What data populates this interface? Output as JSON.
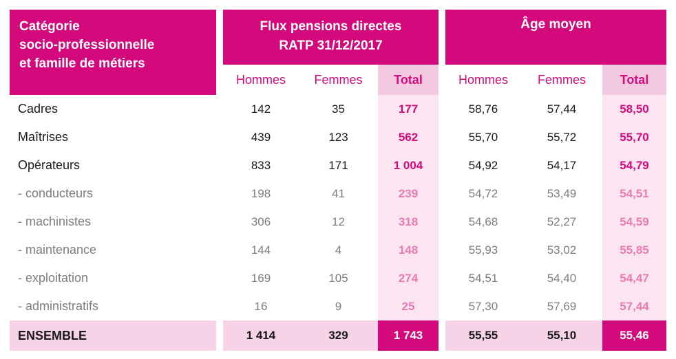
{
  "colors": {
    "magenta": "#d40a7c",
    "total_header_bg": "#f3c9e1",
    "total_column_bg": "#fbe5f1",
    "ensemble_row_bg": "#f7d3e7",
    "sub_row_text": "#8d8d8d",
    "sub_total_text": "#ea7ab1"
  },
  "header": {
    "category": "Catégorie\nsocio-professionnelle\net famille de métiers",
    "group_flux": "Flux pensions directes\nRATP 31/12/2017",
    "group_age": "Âge moyen",
    "columns": [
      "Hommes",
      "Femmes",
      "Total",
      "Hommes",
      "Femmes",
      "Total"
    ]
  },
  "chart_data": {
    "type": "table",
    "title": "Flux pensions directes RATP 31/12/2017 et âge moyen par catégorie socio-professionnelle et famille de métiers",
    "column_groups": [
      "Flux pensions directes RATP 31/12/2017",
      "Âge moyen"
    ],
    "columns": [
      "Hommes",
      "Femmes",
      "Total",
      "Hommes",
      "Femmes",
      "Total"
    ],
    "rows": [
      {
        "label": "Cadres",
        "style": "main",
        "values": [
          "142",
          "35",
          "177",
          "58,76",
          "57,44",
          "58,50"
        ]
      },
      {
        "label": "Maîtrises",
        "style": "main",
        "values": [
          "439",
          "123",
          "562",
          "55,70",
          "55,72",
          "55,70"
        ]
      },
      {
        "label": "Opérateurs",
        "style": "main",
        "values": [
          "833",
          "171",
          "1 004",
          "54,92",
          "54,17",
          "54,79"
        ]
      },
      {
        "label": "- conducteurs",
        "style": "sub",
        "values": [
          "198",
          "41",
          "239",
          "54,72",
          "53,49",
          "54,51"
        ]
      },
      {
        "label": "- machinistes",
        "style": "sub",
        "values": [
          "306",
          "12",
          "318",
          "54,68",
          "52,27",
          "54,59"
        ]
      },
      {
        "label": "- maintenance",
        "style": "sub",
        "values": [
          "144",
          "4",
          "148",
          "55,93",
          "53,02",
          "55,85"
        ]
      },
      {
        "label": "- exploitation",
        "style": "sub",
        "values": [
          "169",
          "105",
          "274",
          "54,51",
          "54,40",
          "54,47"
        ]
      },
      {
        "label": "- administratifs",
        "style": "sub",
        "values": [
          "16",
          "9",
          "25",
          "57,30",
          "57,69",
          "57,44"
        ]
      },
      {
        "label": "ENSEMBLE",
        "style": "total",
        "values": [
          "1 414",
          "329",
          "1 743",
          "55,55",
          "55,10",
          "55,46"
        ]
      }
    ]
  }
}
